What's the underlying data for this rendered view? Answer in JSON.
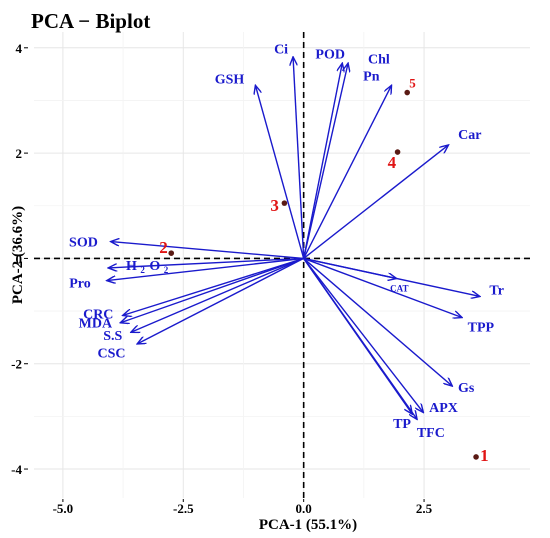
{
  "chart_data": {
    "type": "scatter",
    "title": "PCA − Biplot",
    "xlabel": "PCA-1 (55.1%)",
    "ylabel": "PCA-2 (36.6%)",
    "xlim": [
      -5.6,
      4.7
    ],
    "ylim": [
      -4.55,
      4.3
    ],
    "xticks": [
      -5.0,
      -2.5,
      0.0,
      2.5
    ],
    "xtick_labels": [
      "-5.0",
      "-2.5",
      "0.0",
      "2.5"
    ],
    "yticks": [
      -4,
      -2,
      0,
      2,
      4
    ],
    "ytick_labels": [
      "-4",
      "-2",
      "0",
      "2",
      "4"
    ],
    "grid": true,
    "reference_lines": {
      "x": 0,
      "y": 0,
      "style": "dashed"
    },
    "colors": {
      "vectors": "#1a1acc",
      "point_labels": "#e01414",
      "points": "#5a1a14",
      "grid": "#e6e6e6"
    },
    "vectors": [
      {
        "label": "Ci",
        "x": -0.22,
        "y": 3.82
      },
      {
        "label": "POD",
        "x": 0.8,
        "y": 3.7
      },
      {
        "label": "Chl",
        "x": 0.92,
        "y": 3.7
      },
      {
        "label": "GSH",
        "x": -1.0,
        "y": 3.28
      },
      {
        "label": "Pn",
        "x": 1.82,
        "y": 3.28
      },
      {
        "label": "Car",
        "x": 3.0,
        "y": 2.15
      },
      {
        "label": "SOD",
        "x": -4.0,
        "y": 0.32
      },
      {
        "label": "Pro",
        "x": -4.08,
        "y": -0.42
      },
      {
        "label": "CRC",
        "x": -3.75,
        "y": -1.08
      },
      {
        "label": "MDA",
        "x": -3.8,
        "y": -1.22
      },
      {
        "label": "S.S",
        "x": -3.58,
        "y": -1.4
      },
      {
        "label": "CSC",
        "x": -3.45,
        "y": -1.62
      },
      {
        "label": "CAT",
        "x": 1.92,
        "y": -0.38
      },
      {
        "label": "Tr",
        "x": 3.65,
        "y": -0.72
      },
      {
        "label": "TPP",
        "x": 3.28,
        "y": -1.12
      },
      {
        "label": "Gs",
        "x": 3.08,
        "y": -2.42
      },
      {
        "label": "APX",
        "x": 2.48,
        "y": -2.92
      },
      {
        "label": "TP",
        "x": 2.25,
        "y": -2.95
      },
      {
        "label": "TFC",
        "x": 2.35,
        "y": -3.05
      }
    ],
    "h2o2": {
      "label_main": "H",
      "label_sub1": "2",
      "label_mid": "O",
      "label_sub2": "2"
    },
    "points": [
      {
        "label": "1",
        "x": 3.58,
        "y": -3.77
      },
      {
        "label": "2",
        "x": -2.75,
        "y": 0.1
      },
      {
        "label": "3",
        "x": -0.4,
        "y": 1.05
      },
      {
        "label": "4",
        "x": 1.95,
        "y": 2.02
      },
      {
        "label": "5",
        "x": 2.15,
        "y": 3.15
      }
    ]
  }
}
